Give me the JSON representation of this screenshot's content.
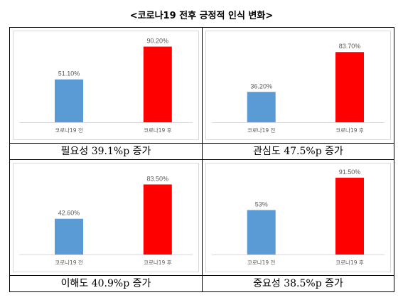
{
  "title": "<코로나19 전후 긍정적 인식 변화>",
  "colors": {
    "before": "#5b9bd5",
    "after": "#ff0000",
    "axis": "#d9d9d9",
    "label": "#595959"
  },
  "chart_data": [
    {
      "type": "bar",
      "categories": [
        "코로나19 전",
        "코로나19 후"
      ],
      "values": [
        51.1,
        90.2
      ],
      "data_labels": [
        "51.10%",
        "90.20%"
      ],
      "ylim": [
        0,
        100
      ],
      "caption": "필요성 39.1%p 증가"
    },
    {
      "type": "bar",
      "categories": [
        "코로나19 전",
        "코로나19 후"
      ],
      "values": [
        36.2,
        83.7
      ],
      "data_labels": [
        "36.20%",
        "83.70%"
      ],
      "ylim": [
        0,
        100
      ],
      "caption": "관심도 47.5%p 증가"
    },
    {
      "type": "bar",
      "categories": [
        "코로나19 전",
        "코로나19 후"
      ],
      "values": [
        42.6,
        83.5
      ],
      "data_labels": [
        "42.60%",
        "83.50%"
      ],
      "ylim": [
        0,
        100
      ],
      "caption": "이해도 40.9%p 증가"
    },
    {
      "type": "bar",
      "categories": [
        "코로나19 전",
        "코로나19 후"
      ],
      "values": [
        53,
        91.5
      ],
      "data_labels": [
        "53%",
        "91.50%"
      ],
      "ylim": [
        0,
        100
      ],
      "caption": "중요성 38.5%p 증가"
    }
  ]
}
